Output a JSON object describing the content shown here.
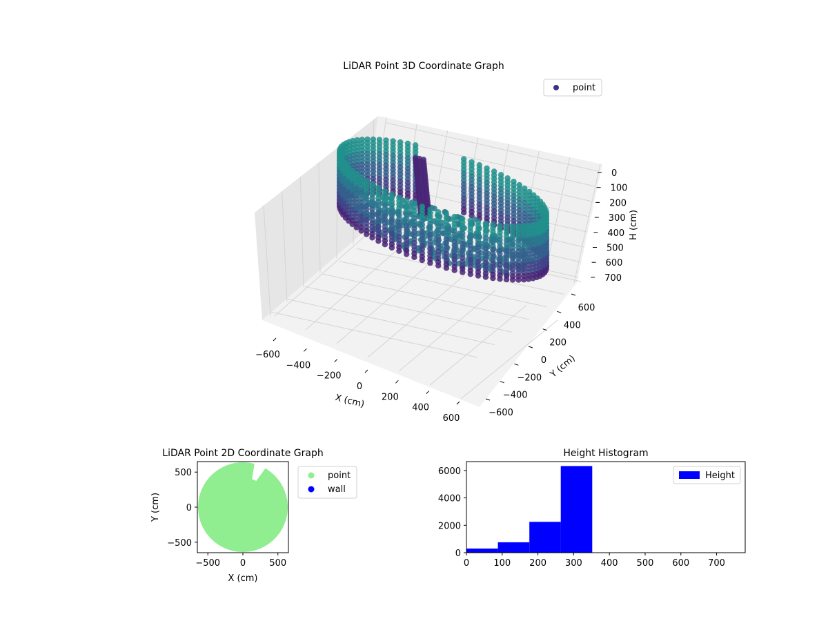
{
  "chart_data": [
    {
      "type": "scatter3d",
      "title": "LiDAR Point 3D Coordinate Graph",
      "xlabel": "X (cm)",
      "ylabel": "Y (cm)",
      "zlabel": "H (cm)",
      "xlim": [
        -700,
        700
      ],
      "ylim": [
        -700,
        700
      ],
      "zlim": [
        0,
        780
      ],
      "z_inverted": true,
      "xticks": [
        "−600",
        "−400",
        "−200",
        "0",
        "200",
        "400",
        "600"
      ],
      "xtick_values": [
        -600,
        -400,
        -200,
        0,
        200,
        400,
        600
      ],
      "yticks": [
        "−600",
        "−400",
        "−200",
        "0",
        "200",
        "400",
        "600"
      ],
      "ytick_values": [
        -600,
        -400,
        -200,
        0,
        200,
        400,
        600
      ],
      "zticks": [
        "0",
        "100",
        "200",
        "300",
        "400",
        "500",
        "600",
        "700"
      ],
      "ztick_values": [
        0,
        100,
        200,
        300,
        400,
        500,
        600,
        700
      ],
      "grid": true,
      "legend": {
        "placement": "top-right",
        "entries": [
          {
            "label": "point",
            "color": "#3b3480"
          }
        ]
      },
      "series": [
        {
          "name": "point",
          "description_shape": "cylindrical wall of points radius ~600 cm, heights 0-350 cm, gap near x 100..250 at positive y; dense column near x -100 y 300",
          "wall_radius": 600,
          "wall_height_range": [
            0,
            350
          ],
          "colors": [
            "#482475",
            "#414487",
            "#355f8d",
            "#2a788e",
            "#21918c"
          ]
        }
      ]
    },
    {
      "type": "scatter",
      "title": "LiDAR Point 2D Coordinate Graph",
      "xlabel": "X (cm)",
      "ylabel": "Y (cm)",
      "xlim": [
        -650,
        650
      ],
      "ylim": [
        -650,
        650
      ],
      "xticks": [
        "−500",
        "0",
        "500"
      ],
      "xtick_values": [
        -500,
        0,
        500
      ],
      "yticks": [
        "−500",
        "0",
        "500"
      ],
      "ytick_values": [
        -500,
        0,
        500
      ],
      "legend": {
        "placement": "outside-right",
        "entries": [
          {
            "label": "point",
            "color": "#90ee90"
          },
          {
            "label": "wall",
            "color": "#0000ff"
          }
        ]
      },
      "series": [
        {
          "name": "point",
          "color": "#90ee90",
          "shape": "filled disk radius ~640 cm with a notch near x 200..250, y 450..650"
        },
        {
          "name": "wall",
          "color": "#0000ff",
          "values": []
        }
      ]
    },
    {
      "type": "bar",
      "title": "Height Histogram",
      "xlabel": "",
      "ylabel": "",
      "xlim": [
        0,
        780
      ],
      "ylim": [
        0,
        6650
      ],
      "xticks": [
        "0",
        "100",
        "200",
        "300",
        "400",
        "500",
        "600",
        "700"
      ],
      "xtick_values": [
        0,
        100,
        200,
        300,
        400,
        500,
        600,
        700
      ],
      "yticks": [
        "0",
        "2000",
        "4000",
        "6000"
      ],
      "ytick_values": [
        0,
        2000,
        4000,
        6000
      ],
      "legend": {
        "placement": "top-right",
        "entries": [
          {
            "label": "Height",
            "color": "#0000ff"
          }
        ]
      },
      "bin_edges": [
        0,
        88,
        176,
        264,
        352,
        440,
        528,
        616,
        704,
        780
      ],
      "series": [
        {
          "name": "Height",
          "color": "#0000ff",
          "values": [
            300,
            760,
            2250,
            6330,
            0,
            0,
            0,
            0,
            0
          ]
        }
      ]
    }
  ]
}
